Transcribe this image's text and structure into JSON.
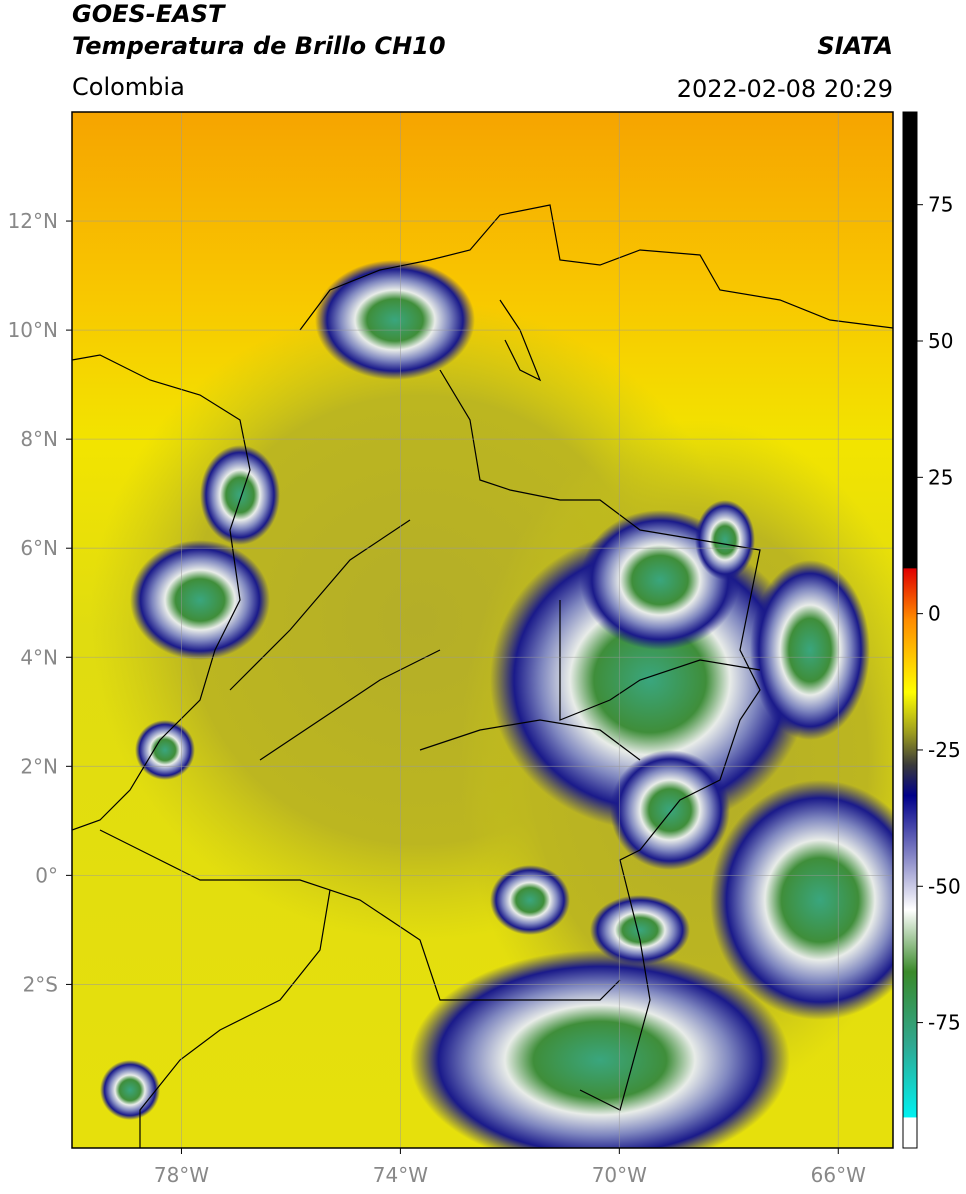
{
  "header": {
    "title": "GOES-EAST",
    "subtitle": "Temperatura de Brillo CH10",
    "region": "Colombia",
    "source": "SIATA",
    "datetime": "2022-02-08 20:29"
  },
  "map": {
    "xlim": [
      -80,
      -65
    ],
    "ylim": [
      -5,
      14
    ],
    "xticks": [
      {
        "value": -78,
        "label": "78°W"
      },
      {
        "value": -74,
        "label": "74°W"
      },
      {
        "value": -70,
        "label": "70°W"
      },
      {
        "value": -66,
        "label": "66°W"
      }
    ],
    "yticks": [
      {
        "value": 12,
        "label": "12°N"
      },
      {
        "value": 10,
        "label": "10°N"
      },
      {
        "value": 8,
        "label": "8°N"
      },
      {
        "value": 6,
        "label": "6°N"
      },
      {
        "value": 4,
        "label": "4°N"
      },
      {
        "value": 2,
        "label": "2°N"
      },
      {
        "value": 0,
        "label": "0°"
      },
      {
        "value": -2,
        "label": "2°S"
      }
    ],
    "grid": true
  },
  "colorbar": {
    "clim": [
      -98,
      92
    ],
    "ticks": [
      75,
      50,
      25,
      0,
      -25,
      -50,
      -75
    ]
  }
}
